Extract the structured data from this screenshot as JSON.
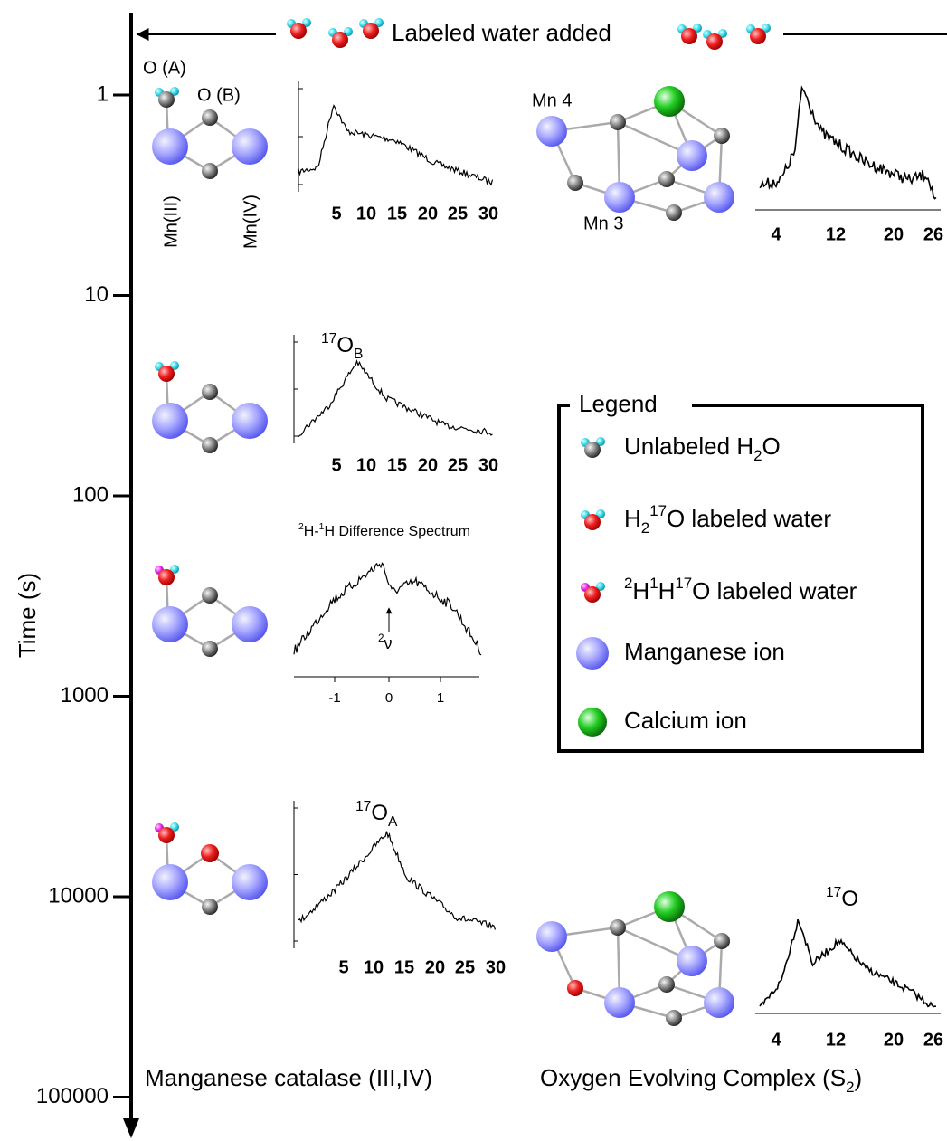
{
  "header": {
    "label": "Labeled water added"
  },
  "time_axis": {
    "label": "Time (s)",
    "ticks": [
      "1",
      "10",
      "100",
      "1000",
      "10000",
      "100000"
    ]
  },
  "catalase": {
    "title": "Manganese catalase (III,IV)",
    "atom_labels": {
      "o_a": "O (A)",
      "o_b": "O (B)",
      "mn3": "Mn(III)",
      "mn4": "Mn(IV)"
    },
    "spectrum_ticks": [
      "5",
      "10",
      "15",
      "20",
      "25",
      "30"
    ],
    "peak_b": [
      {
        "sup": "17"
      },
      {
        "text": "O"
      },
      {
        "sub": "B"
      }
    ],
    "difference_title": [
      {
        "sup": "2"
      },
      {
        "text": "H-"
      },
      {
        "sup": "1"
      },
      {
        "text": "H Difference Spectrum"
      }
    ],
    "difference_ticks": [
      "-1",
      "0",
      "1"
    ],
    "difference_marker": [
      {
        "sup": "2"
      },
      {
        "text": "ν"
      }
    ],
    "peak_a": [
      {
        "sup": "17"
      },
      {
        "text": "O"
      },
      {
        "sub": "A"
      }
    ]
  },
  "oec": {
    "title": [
      {
        "text": "Oxygen Evolving Complex (S"
      },
      {
        "sub": "2"
      },
      {
        "text": ")"
      }
    ],
    "atom_labels": {
      "mn4": "Mn 4",
      "mn3": "Mn 3"
    },
    "spectrum_ticks": [
      "4",
      "12",
      "20",
      "26"
    ],
    "peak": [
      {
        "sup": "17"
      },
      {
        "text": "O"
      }
    ]
  },
  "legend": {
    "title": "Legend",
    "items": [
      [
        {
          "text": "Unlabeled H"
        },
        {
          "sub": "2"
        },
        {
          "text": "O"
        }
      ],
      [
        {
          "text": "H"
        },
        {
          "sub": "2"
        },
        {
          "sup": "17"
        },
        {
          "text": "O labeled water"
        }
      ],
      [
        {
          "sup": "2"
        },
        {
          "text": "H"
        },
        {
          "sup": "1"
        },
        {
          "text": "H"
        },
        {
          "sup": "17"
        },
        {
          "text": "O labeled water"
        }
      ],
      [
        {
          "text": "Manganese ion"
        }
      ],
      [
        {
          "text": "Calcium ion"
        }
      ]
    ]
  }
}
